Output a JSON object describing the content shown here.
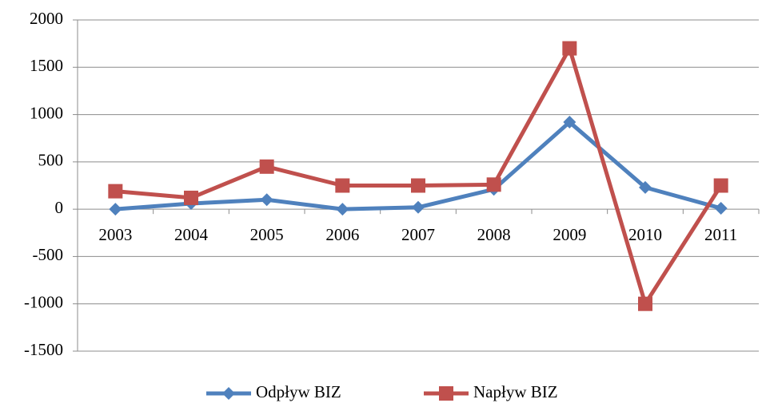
{
  "chart_data": {
    "type": "line",
    "categories": [
      "2003",
      "2004",
      "2005",
      "2006",
      "2007",
      "2008",
      "2009",
      "2010",
      "2011"
    ],
    "series": [
      {
        "name": "Odpływ BIZ",
        "color": "#4f81bd",
        "marker": "diamond",
        "values": [
          0,
          60,
          100,
          0,
          20,
          210,
          920,
          230,
          10
        ]
      },
      {
        "name": "Napływ BIZ",
        "color": "#c0504d",
        "marker": "square",
        "values": [
          190,
          120,
          450,
          250,
          250,
          260,
          1700,
          -1000,
          250
        ]
      }
    ],
    "ylim": [
      -1500,
      2000
    ],
    "yticks": [
      -1500,
      -1000,
      -500,
      0,
      500,
      1000,
      1500,
      2000
    ],
    "grid": true,
    "legend": "bottom"
  }
}
